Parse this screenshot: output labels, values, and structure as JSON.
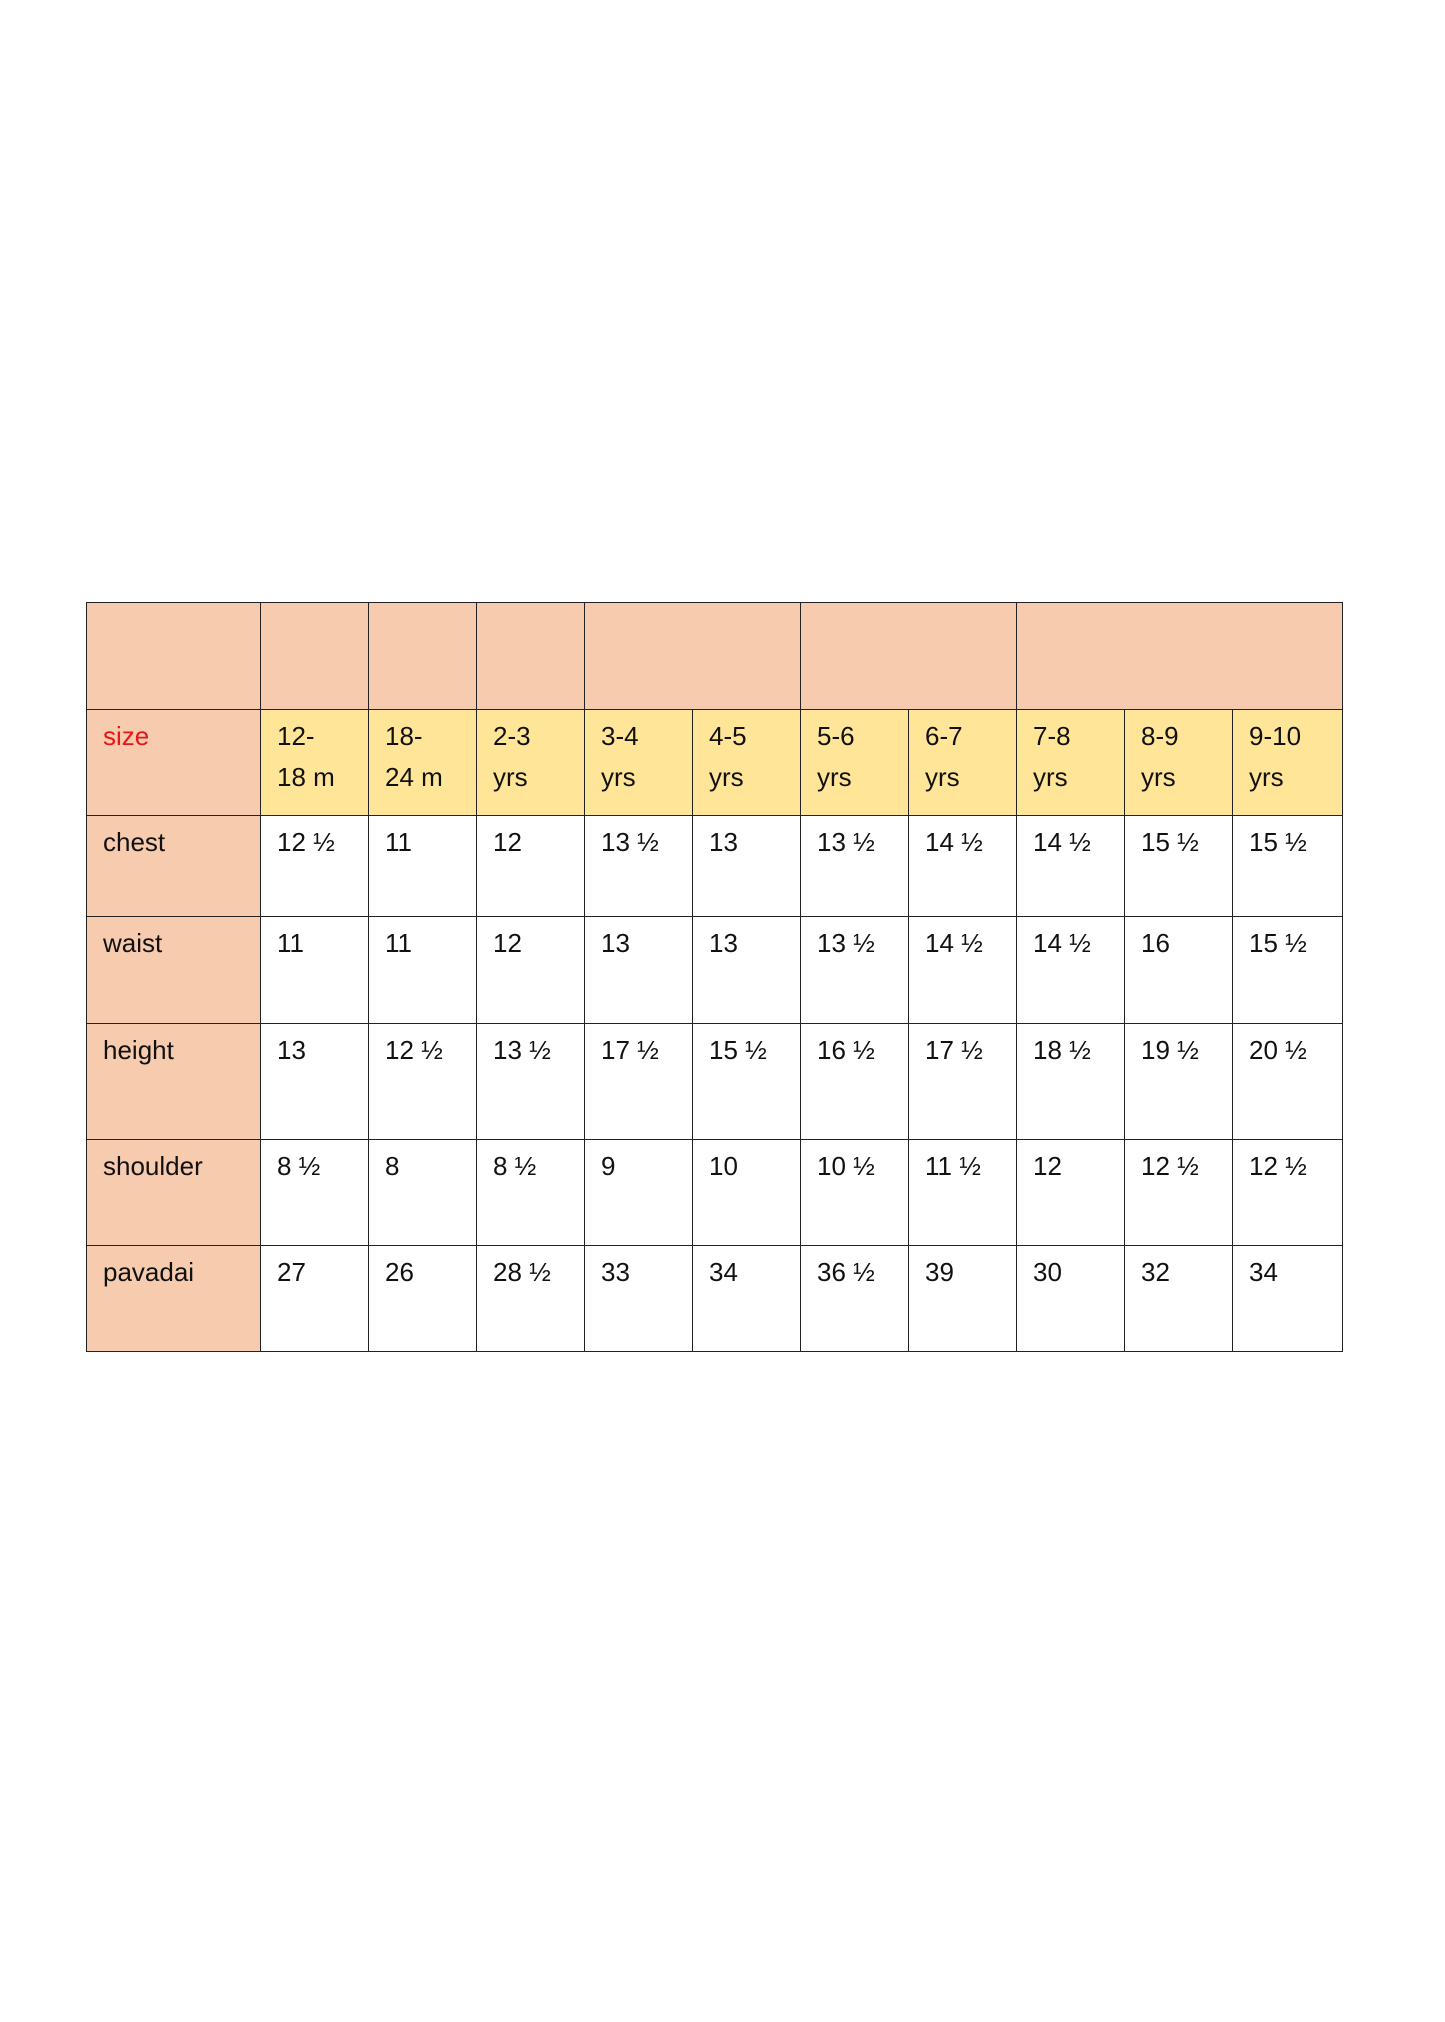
{
  "colors": {
    "label_column": "#F6CBAE",
    "size_row": "#FFE598",
    "size_label": "#E8161B"
  },
  "size_label": "size",
  "sizes": [
    [
      "12-",
      "18 m"
    ],
    [
      "18-",
      "24 m"
    ],
    [
      "2-3",
      "yrs"
    ],
    [
      "3-4",
      "yrs"
    ],
    [
      "4-5",
      "yrs"
    ],
    [
      "5-6",
      "yrs"
    ],
    [
      "6-7",
      "yrs"
    ],
    [
      "7-8",
      "yrs"
    ],
    [
      "8-9",
      "yrs"
    ],
    [
      "9-10",
      "yrs"
    ]
  ],
  "rows": [
    {
      "label": "chest",
      "values": [
        "12 ½",
        "11",
        "12",
        "13 ½",
        "13",
        "13 ½",
        "14 ½",
        "14 ½",
        "15 ½",
        "15 ½"
      ]
    },
    {
      "label": "waist",
      "values": [
        "11",
        "11",
        "12",
        "13",
        "13",
        "13 ½",
        "14 ½",
        "14 ½",
        "16",
        "15 ½"
      ]
    },
    {
      "label": "height",
      "values": [
        "13",
        "12 ½",
        "13 ½",
        "17 ½",
        "15 ½",
        "16 ½",
        "17 ½",
        "18 ½",
        "19 ½",
        "20 ½"
      ]
    },
    {
      "label": "shoulder",
      "values": [
        "8 ½",
        "8",
        "8 ½",
        "9",
        "10",
        "10 ½",
        "11 ½",
        "12",
        "12 ½",
        "12 ½"
      ]
    },
    {
      "label": "pavadai",
      "values": [
        "27",
        "26",
        "28 ½",
        "33",
        "34",
        "36 ½",
        "39",
        "30",
        "32",
        "34"
      ]
    }
  ]
}
